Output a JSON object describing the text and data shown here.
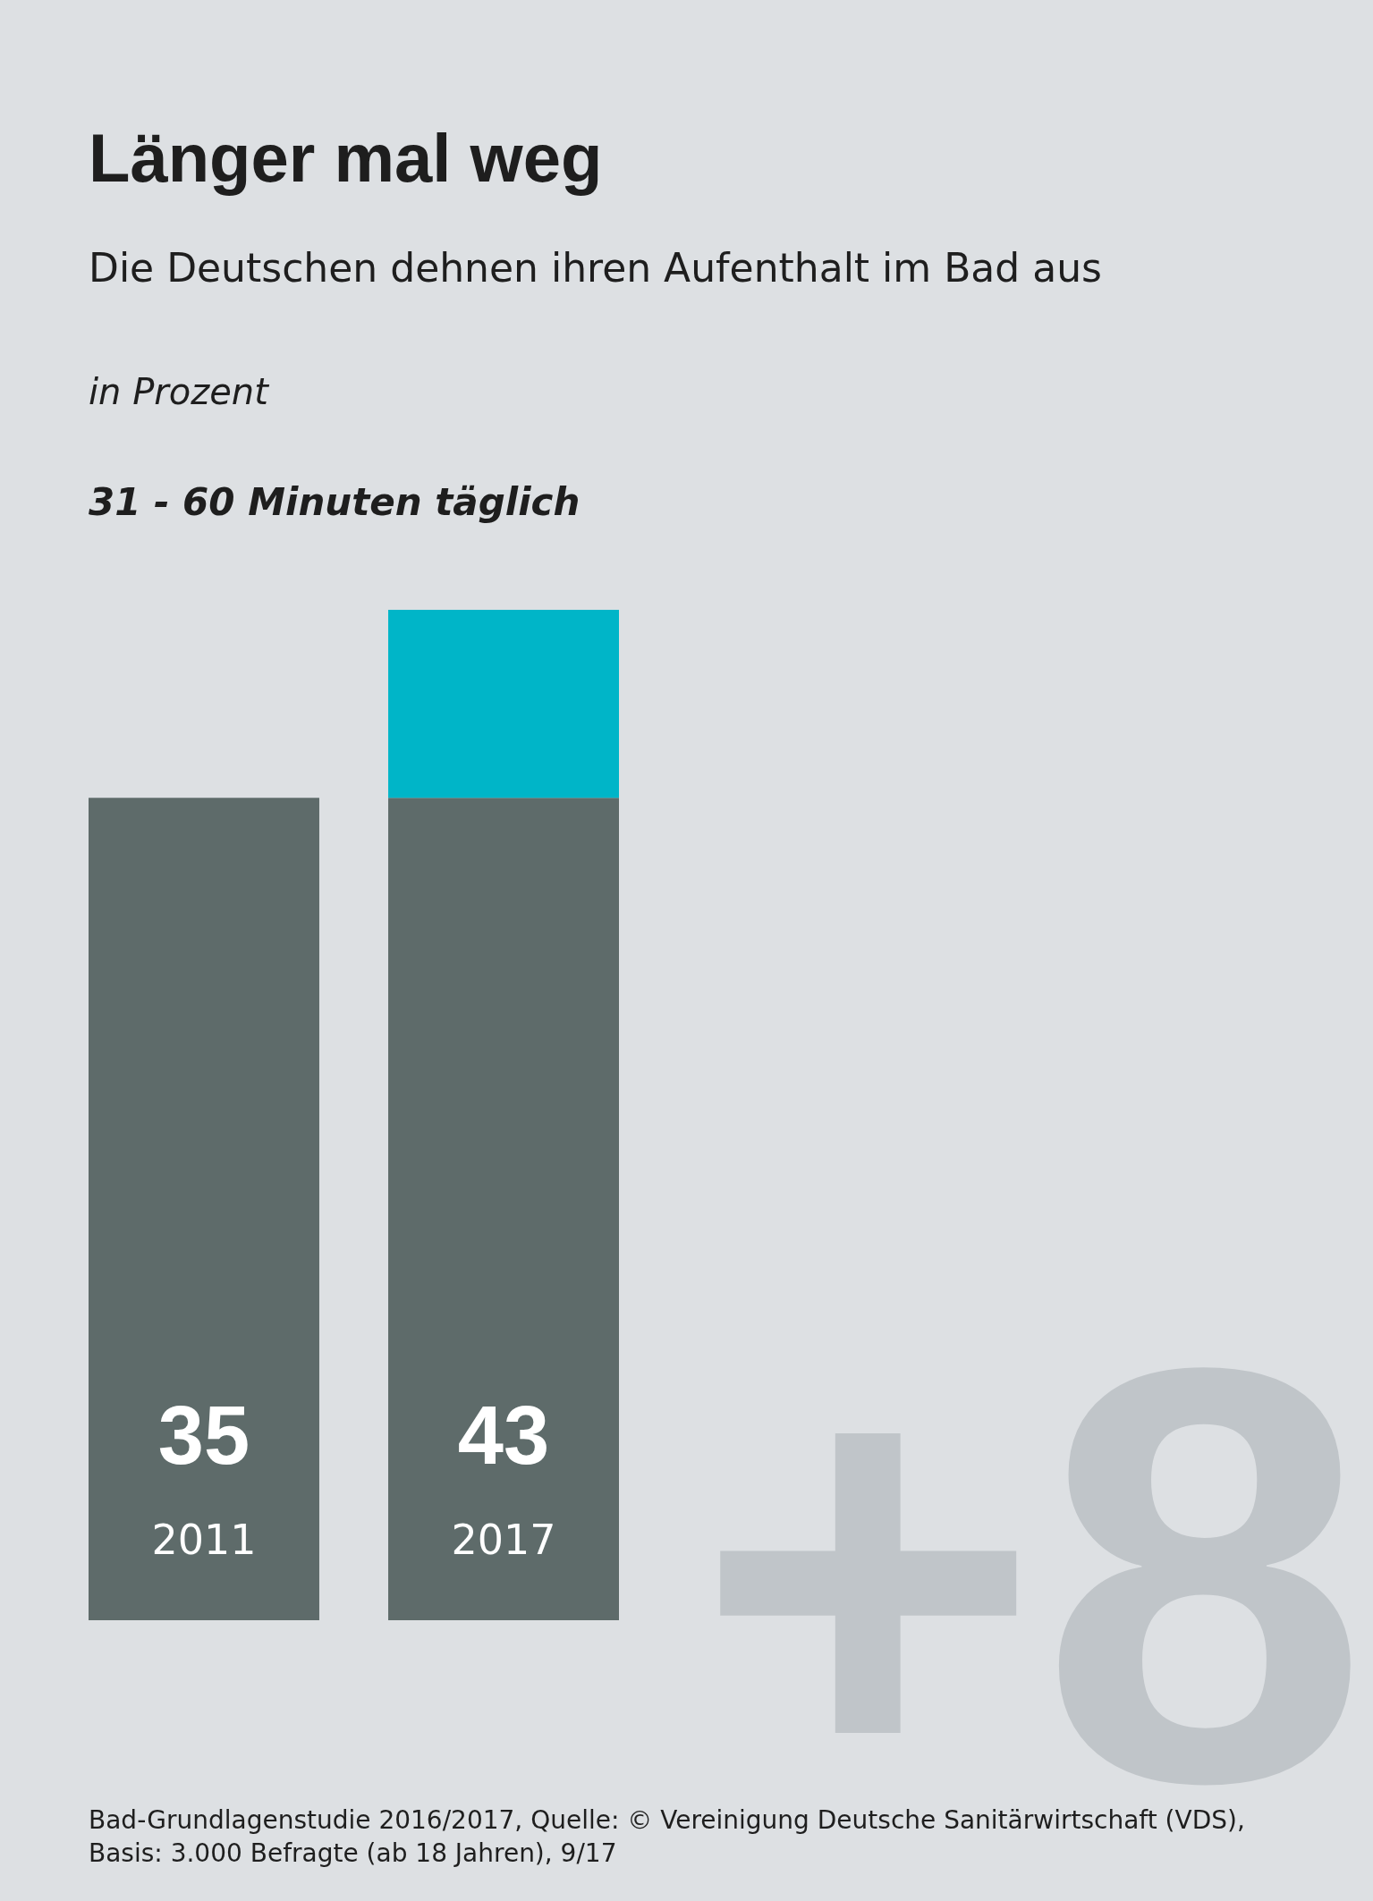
{
  "chart_data": {
    "type": "bar",
    "title": "Länger mal weg",
    "subtitle": "Die Deutschen dehnen ihren Aufenthalt im Bad aus",
    "categories": [
      "2011",
      "2017"
    ],
    "stacked": true,
    "series": [
      {
        "color": "#5e6b6a",
        "values": [
          35,
          35
        ]
      },
      {
        "color": "#00b5c8",
        "values": [
          null,
          8
        ],
        "value_labels": [
          null,
          "+8"
        ]
      }
    ],
    "totals": [
      "35",
      "43"
    ],
    "annotations": [
      "in Prozent",
      "31 - 60 Minuten täglich",
      "Bad-Grundlagenstudie 2016/2017, Quelle: © Vereinigung Deutsche Sanitärwirtschaft (VDS),",
      "Basis: 3.000 Befragte (ab 18 Jahren), 9/17"
    ]
  }
}
